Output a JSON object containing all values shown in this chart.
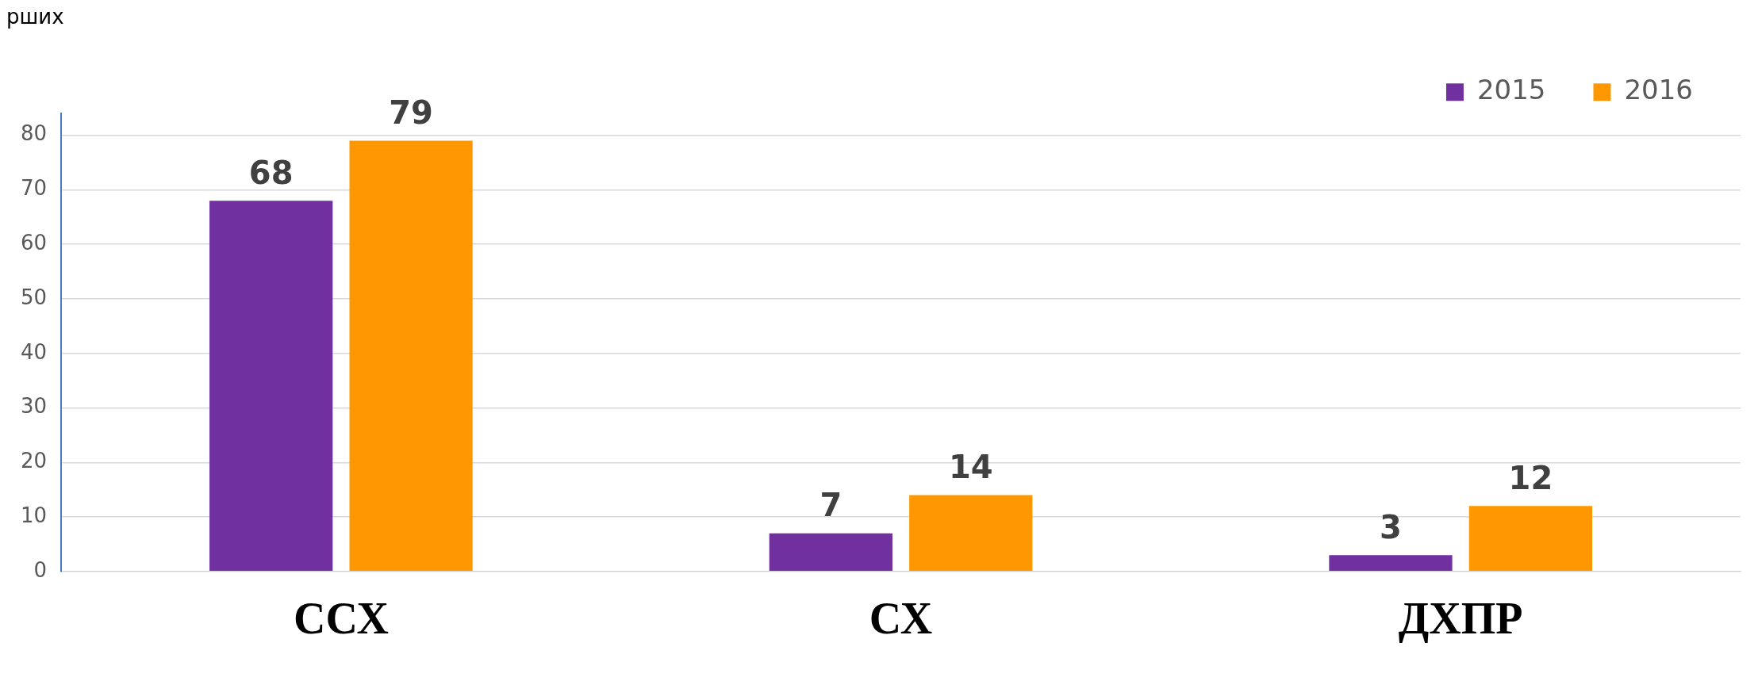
{
  "chart_data": {
    "type": "bar",
    "title": "рших",
    "categories": [
      "ССХ",
      "СХ",
      "ДХПР"
    ],
    "series": [
      {
        "name": "2015",
        "color": "#7030a0",
        "values": [
          68,
          7,
          3
        ]
      },
      {
        "name": "2016",
        "color": "#ff9800",
        "values": [
          79,
          14,
          12
        ]
      }
    ],
    "ylim": [
      0,
      84
    ],
    "yticks": [
      0,
      10,
      20,
      30,
      40,
      50,
      60,
      70,
      80
    ],
    "grid": "y",
    "legend": "top right",
    "data_labels": true
  }
}
